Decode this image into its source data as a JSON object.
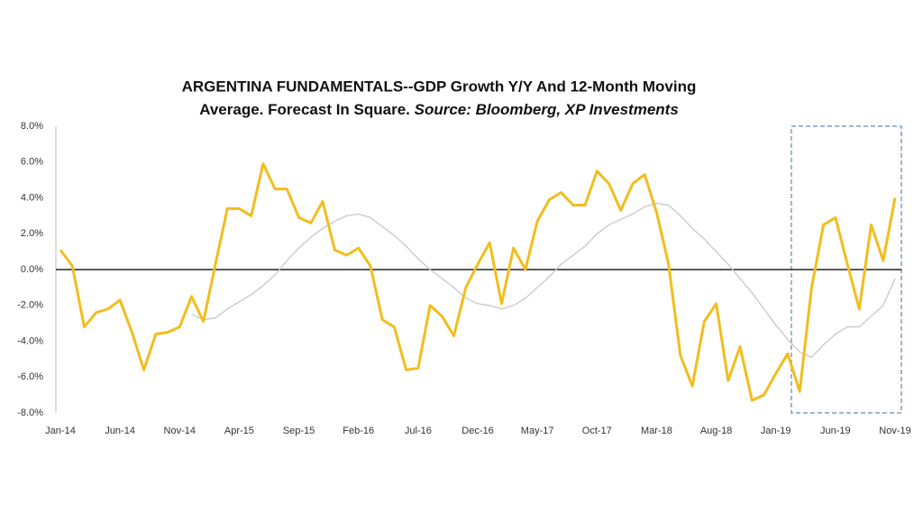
{
  "chart_data": {
    "type": "line",
    "title": [
      "ARGENTINA FUNDAMENTALS--GDP Growth Y/Y And 12-Month Moving",
      "Average. Forecast In Square.",
      "Source: Bloomberg, XP Investments"
    ],
    "categories": [
      "Jan-14",
      null,
      null,
      null,
      null,
      "Jun-14",
      null,
      null,
      null,
      null,
      "Nov-14",
      null,
      null,
      null,
      null,
      "Apr-15",
      null,
      null,
      null,
      null,
      "Sep-15",
      null,
      null,
      null,
      null,
      "Feb-16",
      null,
      null,
      null,
      null,
      "Jul-16",
      null,
      null,
      null,
      null,
      "Dec-16",
      null,
      null,
      null,
      null,
      "May-17",
      null,
      null,
      null,
      null,
      "Oct-17",
      null,
      null,
      null,
      null,
      "Mar-18",
      null,
      null,
      null,
      null,
      "Aug-18",
      null,
      null,
      null,
      null,
      "Jan-19",
      null,
      null,
      null,
      null,
      "Jun-19",
      null,
      null,
      null,
      null,
      "Nov-19"
    ],
    "series": [
      {
        "color": "#f2bd1d",
        "values": [
          1.1,
          0.2,
          -3.2,
          -2.4,
          -2.2,
          -1.7,
          -3.5,
          -5.6,
          -3.6,
          -3.5,
          -3.2,
          -1.5,
          -2.9,
          0.3,
          3.4,
          3.4,
          3.0,
          5.9,
          4.5,
          4.5,
          2.9,
          2.6,
          3.8,
          1.1,
          0.8,
          1.2,
          0.2,
          -2.8,
          -3.2,
          -5.6,
          -5.5,
          -2.0,
          -2.6,
          -3.7,
          -1.0,
          0.3,
          1.5,
          -1.9,
          1.2,
          0.0,
          2.7,
          3.9,
          4.3,
          3.6,
          3.6,
          5.5,
          4.8,
          3.3,
          4.8,
          5.3,
          3.2,
          0.3,
          -4.8,
          -6.5,
          -2.9,
          -1.9,
          -6.2,
          -4.3,
          -7.3,
          -7.0,
          -5.8,
          -4.7,
          -6.8,
          -1.0,
          2.5,
          2.9,
          0.3,
          -2.2,
          2.5,
          0.5,
          4.0
        ]
      },
      {
        "color": "#c8c8c8",
        "values": [
          null,
          null,
          null,
          null,
          null,
          null,
          null,
          null,
          null,
          null,
          null,
          -2.5,
          -2.8,
          -2.7,
          -2.2,
          -1.8,
          -1.4,
          -0.9,
          -0.3,
          0.5,
          1.2,
          1.8,
          2.3,
          2.7,
          3.0,
          3.1,
          2.9,
          2.4,
          1.9,
          1.3,
          0.6,
          0.0,
          -0.5,
          -1.0,
          -1.6,
          -1.9,
          -2.0,
          -2.2,
          -2.0,
          -1.6,
          -1.0,
          -0.4,
          0.3,
          0.8,
          1.3,
          2.0,
          2.5,
          2.8,
          3.1,
          3.5,
          3.7,
          3.6,
          3.0,
          2.3,
          1.7,
          1.0,
          0.3,
          -0.5,
          -1.3,
          -2.2,
          -3.1,
          -3.9,
          -4.6,
          -4.9,
          -4.2,
          -3.6,
          -3.2,
          -3.2,
          -2.6,
          -2.0,
          -0.5
        ]
      }
    ],
    "ylim": [
      -8,
      8
    ],
    "yticks": [
      {
        "value": -8,
        "label": "-8.0%"
      },
      {
        "value": -6,
        "label": "-6.0%"
      },
      {
        "value": -4,
        "label": "-4.0%"
      },
      {
        "value": -2,
        "label": "-2.0%"
      },
      {
        "value": 0,
        "label": "0.0%"
      },
      {
        "value": 2,
        "label": "2.0%"
      },
      {
        "value": 4,
        "label": "4.0%"
      },
      {
        "value": 6,
        "label": "6.0%"
      },
      {
        "value": 8,
        "label": {
          "value": 8,
          "label": "8.0%"
        }
      }
    ]
  }
}
